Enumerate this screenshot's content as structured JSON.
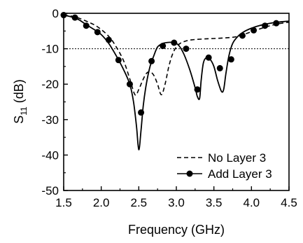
{
  "chart_data": {
    "type": "line",
    "title": "",
    "xlabel": "Frequency (GHz)",
    "ylabel": "S11 (dB)",
    "ylabel_main": "S",
    "ylabel_sub": "11",
    "ylabel_unit": " (dB)",
    "xlim": [
      1.5,
      4.5
    ],
    "ylim": [
      -50,
      0
    ],
    "xticks": [
      1.5,
      2.0,
      2.5,
      3.0,
      3.5,
      4.0,
      4.5
    ],
    "xtick_labels": [
      "1.5",
      "2.0",
      "2.5",
      "3.0",
      "3.5",
      "4.0",
      "4.5"
    ],
    "yticks": [
      0,
      -10,
      -20,
      -30,
      -40,
      -50
    ],
    "ytick_labels": [
      "0",
      "-10",
      "-20",
      "-30",
      "-40",
      "-50"
    ],
    "grid": false,
    "reference_line": {
      "y": -10,
      "style": "dotted"
    },
    "legend_position": "lower-right",
    "series": [
      {
        "name": "No Layer 3",
        "style": "dashed",
        "marker": "none",
        "x": [
          1.5,
          1.65,
          1.8,
          1.95,
          2.1,
          2.2,
          2.3,
          2.38,
          2.45,
          2.5,
          2.55,
          2.6,
          2.65,
          2.7,
          2.75,
          2.8,
          2.85,
          2.9,
          2.95,
          3.0,
          3.05,
          3.1,
          3.2,
          3.4,
          3.6,
          3.8,
          4.0,
          4.2,
          4.35,
          4.5
        ],
        "y": [
          -0.5,
          -1.0,
          -2.2,
          -3.8,
          -6.5,
          -9.5,
          -13.5,
          -18.5,
          -23.0,
          -21.5,
          -19.0,
          -17.0,
          -16.5,
          -17.5,
          -20.0,
          -23.0,
          -20.0,
          -15.0,
          -11.5,
          -9.5,
          -8.5,
          -8.0,
          -7.5,
          -7.2,
          -7.0,
          -6.6,
          -5.2,
          -3.8,
          -3.0,
          -2.5
        ]
      },
      {
        "name": "Add Layer 3",
        "style": "solid",
        "marker": "circle",
        "x": [
          1.5,
          1.6,
          1.7,
          1.8,
          1.9,
          2.0,
          2.1,
          2.2,
          2.3,
          2.38,
          2.43,
          2.47,
          2.5,
          2.53,
          2.56,
          2.6,
          2.65,
          2.7,
          2.75,
          2.82,
          2.9,
          2.97,
          3.03,
          3.1,
          3.18,
          3.25,
          3.28,
          3.31,
          3.33,
          3.36,
          3.4,
          3.45,
          3.5,
          3.55,
          3.6,
          3.63,
          3.66,
          3.7,
          3.75,
          3.82,
          3.9,
          4.0,
          4.1,
          4.2,
          4.35,
          4.5
        ],
        "y": [
          -0.5,
          -1.0,
          -1.8,
          -3.2,
          -4.5,
          -6.0,
          -8.5,
          -12.0,
          -16.0,
          -20.0,
          -25.0,
          -32.0,
          -38.5,
          -33.0,
          -26.0,
          -20.0,
          -15.0,
          -12.0,
          -9.5,
          -8.5,
          -8.2,
          -8.3,
          -9.0,
          -11.5,
          -16.0,
          -21.0,
          -23.5,
          -24.0,
          -19.0,
          -14.0,
          -12.5,
          -13.0,
          -15.0,
          -19.0,
          -22.0,
          -21.5,
          -17.0,
          -12.0,
          -8.5,
          -6.5,
          -5.2,
          -4.2,
          -3.5,
          -3.0,
          -2.5,
          -2.2
        ],
        "markers_x": [
          1.5,
          1.65,
          1.8,
          1.95,
          2.1,
          2.23,
          2.38,
          2.53,
          2.67,
          2.82,
          2.97,
          3.13,
          3.28,
          3.43,
          3.58,
          3.73,
          3.88,
          4.03,
          4.18,
          4.33
        ],
        "markers_y": [
          -0.5,
          -1.2,
          -3.5,
          -5.3,
          -7.5,
          -13.2,
          -20.0,
          -28.0,
          -13.5,
          -9.2,
          -8.3,
          -10.0,
          -21.5,
          -12.5,
          -15.5,
          -13.0,
          -6.3,
          -4.8,
          -3.5,
          -2.8
        ]
      }
    ],
    "legend": {
      "entries": [
        "No Layer 3",
        "Add Layer 3"
      ]
    }
  }
}
